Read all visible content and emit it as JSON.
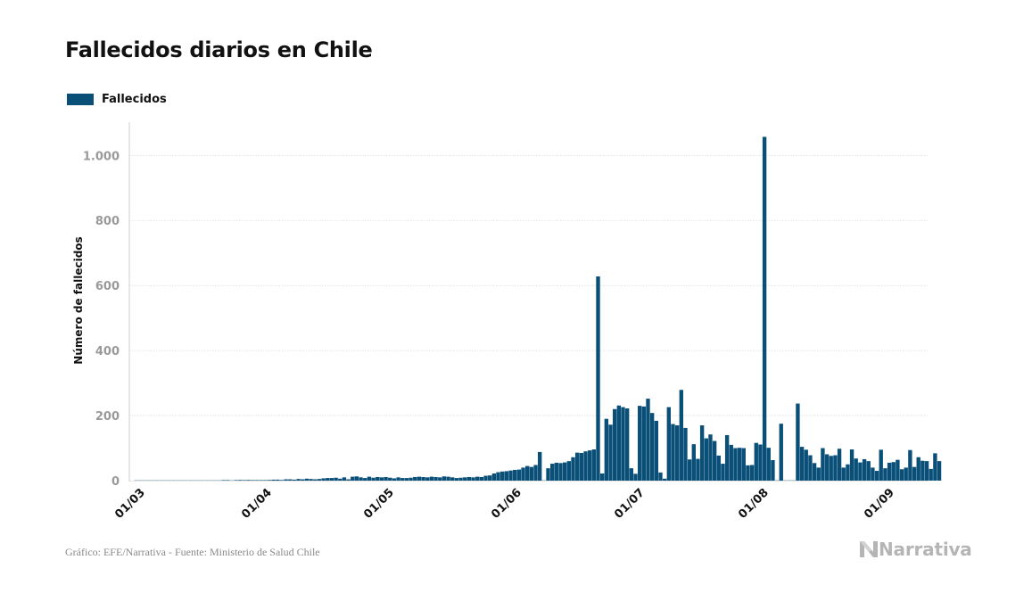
{
  "title": "Fallecidos diarios en Chile",
  "legend": {
    "label": "Fallecidos",
    "icon": "legend-swatch"
  },
  "source": "Gráfico: EFE/Narrativa - Fuente: Ministerio de Salud Chile",
  "logo": {
    "text": "Narrativa",
    "icon": "narrativa-n-logo-icon"
  },
  "colors": {
    "bars": "#0a4f78",
    "grid": "#dddddd",
    "axis": "#cfcfcf",
    "tick_label": "#999999",
    "text": "#111111"
  },
  "chart_data": {
    "type": "bar",
    "title": "Fallecidos diarios en Chile",
    "xlabel": "",
    "ylabel": "Número de fallecidos",
    "ylim": [
      0,
      1100
    ],
    "y_ticks": [
      0,
      200,
      400,
      600,
      800,
      1000
    ],
    "y_tick_labels": [
      "0",
      "200",
      "400",
      "600",
      "800",
      "1.000"
    ],
    "x_ticks": [
      "01/03",
      "01/04",
      "01/05",
      "01/06",
      "01/07",
      "01/08",
      "01/09"
    ],
    "grid": true,
    "legend_position": "top-left",
    "series": [
      {
        "name": "Fallecidos",
        "start_date": "2020-03-01",
        "values": [
          0,
          0,
          0,
          0,
          0,
          0,
          0,
          0,
          0,
          0,
          0,
          0,
          0,
          0,
          0,
          0,
          0,
          0,
          0,
          0,
          0,
          1,
          1,
          0,
          1,
          2,
          1,
          2,
          1,
          1,
          1,
          1,
          2,
          3,
          3,
          2,
          4,
          4,
          3,
          5,
          4,
          6,
          5,
          4,
          5,
          7,
          8,
          8,
          9,
          6,
          10,
          4,
          12,
          13,
          10,
          8,
          12,
          9,
          11,
          10,
          11,
          9,
          7,
          10,
          8,
          8,
          9,
          11,
          12,
          11,
          10,
          12,
          11,
          10,
          13,
          12,
          10,
          8,
          9,
          10,
          11,
          10,
          12,
          11,
          15,
          16,
          22,
          26,
          28,
          29,
          31,
          33,
          34,
          40,
          45,
          42,
          48,
          88,
          0,
          38,
          52,
          55,
          54,
          56,
          60,
          72,
          86,
          85,
          90,
          93,
          96,
          628,
          22,
          190,
          172,
          220,
          231,
          226,
          222,
          38,
          21,
          230,
          228,
          252,
          208,
          184,
          25,
          6,
          226,
          174,
          170,
          279,
          162,
          65,
          112,
          67,
          170,
          130,
          142,
          122,
          77,
          52,
          140,
          110,
          100,
          101,
          100,
          47,
          48,
          116,
          111,
          1057,
          101,
          63,
          0,
          175,
          0,
          0,
          0,
          237,
          104,
          95,
          78,
          54,
          40,
          100,
          81,
          76,
          78,
          98,
          40,
          50,
          96,
          68,
          56,
          66,
          60,
          40,
          30,
          95,
          38,
          55,
          57,
          64,
          35,
          40,
          94,
          42,
          72,
          61,
          60,
          36,
          84,
          60
        ]
      }
    ]
  }
}
